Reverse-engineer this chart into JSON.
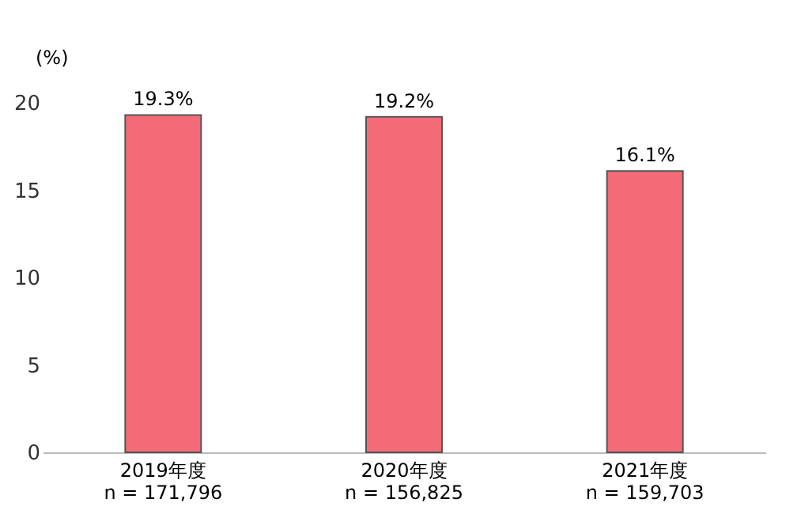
{
  "chart_data": {
    "type": "bar",
    "categories": [
      "2019年度\nn = 171,796",
      "2020年度\nn = 156,825",
      "2021年度\nn = 159,703"
    ],
    "values": [
      19.3,
      19.2,
      16.1
    ],
    "value_labels": [
      "19.3%",
      "19.2%",
      "16.1%"
    ],
    "color": "#f46b78",
    "ylabel": "(%)",
    "ylim": [
      0,
      20
    ],
    "yticks": [
      0,
      5,
      10,
      15,
      20
    ],
    "grid": false
  }
}
